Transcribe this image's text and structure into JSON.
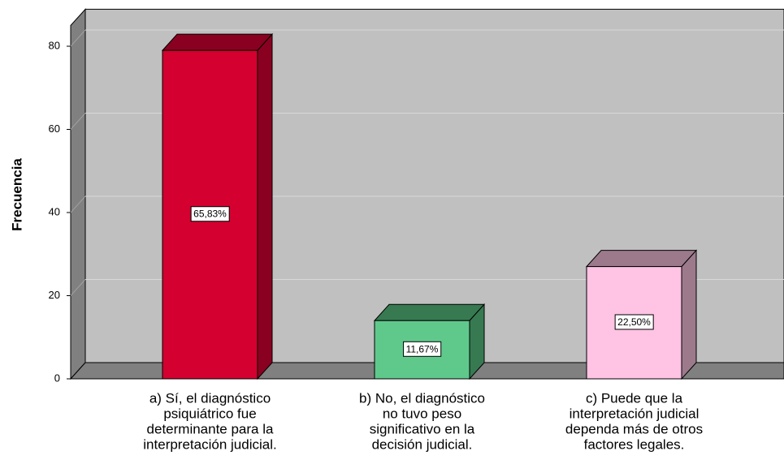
{
  "chart_data": {
    "type": "bar3d",
    "y_label": "Frecuencia",
    "categories": [
      [
        "a) Sí, el diagnóstico",
        "psiquiátrico fue",
        "determinante para la",
        "interpretación judicial."
      ],
      [
        "b) No, el diagnóstico",
        "no tuvo peso",
        "significativo en la",
        "decisión judicial."
      ],
      [
        "c) Puede que la",
        "interpretación judicial",
        "dependa más de otros",
        "factores legales."
      ]
    ],
    "values": [
      79,
      14,
      27
    ],
    "data_labels": [
      "65,83%",
      "11,67%",
      "22,50%"
    ],
    "colors": [
      "#d4002f",
      "#5fc98c",
      "#ffc3e3"
    ],
    "shade_colors": [
      "#8a0021",
      "#377a51",
      "#9c7a8b"
    ],
    "ylim": [
      0,
      85
    ],
    "yticks": [
      0,
      20,
      40,
      60,
      80
    ],
    "grid": true
  }
}
